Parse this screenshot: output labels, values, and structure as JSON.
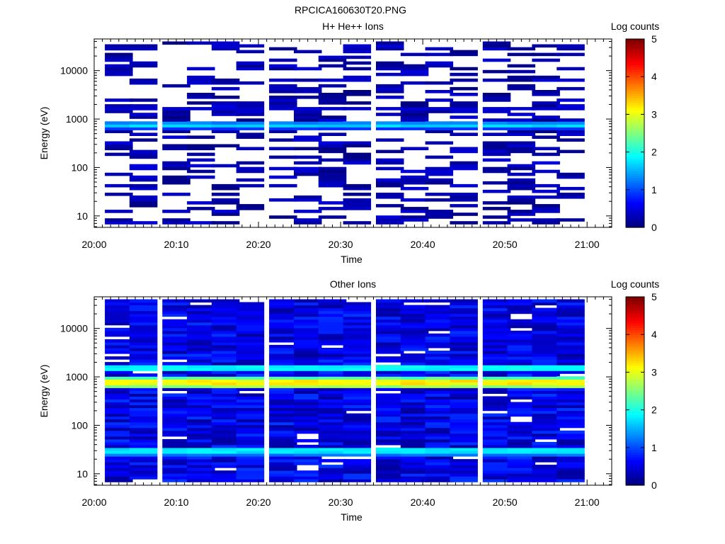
{
  "figure_title": "RPCICA160630T20.PNG",
  "chart_data": [
    {
      "type": "heatmap",
      "title": "H+ He++ Ions",
      "xlabel": "Time",
      "ylabel": "Energy (eV)",
      "x_ticks": [
        "20:00",
        "20:10",
        "20:20",
        "20:30",
        "20:40",
        "20:50",
        "21:00"
      ],
      "x_range": [
        "20:00",
        "21:03"
      ],
      "y_scale": "log",
      "y_ticks": [
        "10",
        "100",
        "1000",
        "10000"
      ],
      "y_range": [
        5.8,
        45000
      ],
      "colorbar": {
        "label": "Log counts",
        "range": [
          0,
          5
        ],
        "ticks": [
          "0",
          "1",
          "2",
          "3",
          "4",
          "5"
        ],
        "colormap": "jet"
      },
      "time_bins": [
        "20:03",
        "20:06",
        "20:10",
        "20:13",
        "20:16",
        "20:19",
        "20:23",
        "20:26",
        "20:29",
        "20:32",
        "20:36",
        "20:39",
        "20:42",
        "20:45",
        "20:49",
        "20:52",
        "20:55",
        "20:58"
      ],
      "band_levels": [
        {
          "energy_eV": 720,
          "log_counts": 1.7
        },
        {
          "energy_eV": 800,
          "log_counts": 1.3
        },
        {
          "energy_eV": 650,
          "log_counts": 0.9
        },
        {
          "energy_eV": 1600,
          "log_counts": 0.4
        }
      ],
      "sparse": true
    },
    {
      "type": "heatmap",
      "title": "Other Ions",
      "xlabel": "Time",
      "ylabel": "Energy (eV)",
      "x_ticks": [
        "20:00",
        "20:10",
        "20:20",
        "20:30",
        "20:40",
        "20:50",
        "21:00"
      ],
      "x_range": [
        "20:00",
        "21:03"
      ],
      "y_scale": "log",
      "y_ticks": [
        "10",
        "100",
        "1000",
        "10000"
      ],
      "y_range": [
        5.8,
        45000
      ],
      "colorbar": {
        "label": "Log counts",
        "range": [
          0,
          5
        ],
        "ticks": [
          "0",
          "1",
          "2",
          "3",
          "4",
          "5"
        ],
        "colormap": "jet"
      },
      "time_bins": [
        "20:03",
        "20:06",
        "20:10",
        "20:13",
        "20:16",
        "20:19",
        "20:23",
        "20:26",
        "20:29",
        "20:32",
        "20:36",
        "20:39",
        "20:42",
        "20:45",
        "20:49",
        "20:52",
        "20:55",
        "20:58"
      ],
      "band_levels": [
        {
          "energy_eV": 800,
          "log_counts": 3.2
        },
        {
          "energy_eV": 700,
          "log_counts": 2.7
        },
        {
          "energy_eV": 900,
          "log_counts": 2.3
        },
        {
          "energy_eV": 1550,
          "log_counts": 1.9
        },
        {
          "energy_eV": 30,
          "log_counts": 1.8
        },
        {
          "energy_eV": 25,
          "log_counts": 1.2
        }
      ],
      "sparse": false
    }
  ]
}
